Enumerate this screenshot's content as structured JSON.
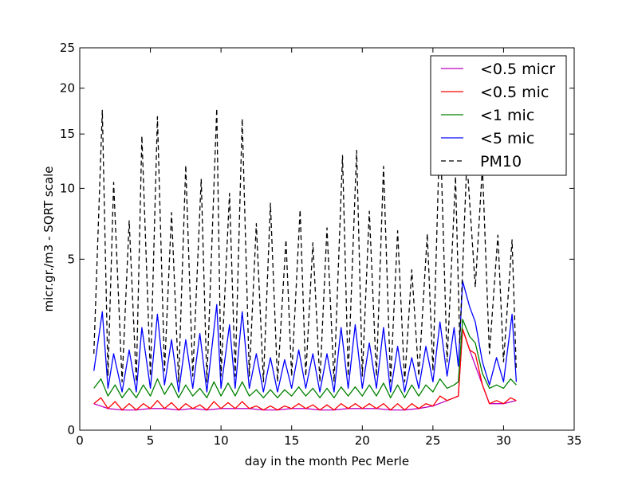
{
  "chart_data": {
    "type": "line",
    "title": "",
    "xlabel": "day in the month Pec Merle",
    "ylabel": "micr.gr./m3 - SQRT scale",
    "y_scale": "sqrt",
    "xlim": [
      0,
      35
    ],
    "ylim": [
      0,
      25
    ],
    "x_ticks": [
      0,
      5,
      10,
      15,
      20,
      25,
      30,
      35
    ],
    "y_ticks": [
      0,
      5,
      10,
      15,
      20,
      25
    ],
    "grid": false,
    "legend_position": "top-right",
    "series": [
      {
        "name": "<0.5 micr",
        "color": "#bf00bf",
        "style": "solid",
        "points": [
          [
            1,
            0.12
          ],
          [
            2,
            0.08
          ],
          [
            3,
            0.07
          ],
          [
            4,
            0.07
          ],
          [
            5,
            0.08
          ],
          [
            6,
            0.08
          ],
          [
            7,
            0.07
          ],
          [
            8,
            0.08
          ],
          [
            9,
            0.07
          ],
          [
            10,
            0.08
          ],
          [
            11,
            0.08
          ],
          [
            12,
            0.08
          ],
          [
            13,
            0.07
          ],
          [
            14,
            0.07
          ],
          [
            15,
            0.08
          ],
          [
            16,
            0.08
          ],
          [
            17,
            0.07
          ],
          [
            18,
            0.07
          ],
          [
            19,
            0.08
          ],
          [
            20,
            0.08
          ],
          [
            21,
            0.08
          ],
          [
            22,
            0.07
          ],
          [
            23,
            0.07
          ],
          [
            24,
            0.08
          ],
          [
            25,
            0.1
          ],
          [
            26,
            0.15
          ],
          [
            26.8,
            0.2
          ],
          [
            27.1,
            1.75
          ],
          [
            27.6,
            1.1
          ],
          [
            28.5,
            0.35
          ],
          [
            29,
            0.12
          ],
          [
            30,
            0.12
          ],
          [
            30.9,
            0.15
          ]
        ]
      },
      {
        "name": "<0.5 mic",
        "color": "#ff0000",
        "style": "solid",
        "points": [
          [
            1,
            0.12
          ],
          [
            1.5,
            0.18
          ],
          [
            2,
            0.08
          ],
          [
            2.5,
            0.14
          ],
          [
            3,
            0.07
          ],
          [
            3.5,
            0.12
          ],
          [
            4,
            0.07
          ],
          [
            4.5,
            0.12
          ],
          [
            5,
            0.08
          ],
          [
            5.5,
            0.15
          ],
          [
            6,
            0.08
          ],
          [
            6.5,
            0.13
          ],
          [
            7,
            0.07
          ],
          [
            7.5,
            0.12
          ],
          [
            8,
            0.08
          ],
          [
            8.5,
            0.11
          ],
          [
            9,
            0.07
          ],
          [
            9.5,
            0.14
          ],
          [
            10,
            0.08
          ],
          [
            10.5,
            0.13
          ],
          [
            11,
            0.08
          ],
          [
            11.5,
            0.14
          ],
          [
            12,
            0.08
          ],
          [
            12.5,
            0.1
          ],
          [
            13,
            0.07
          ],
          [
            13.5,
            0.1
          ],
          [
            14,
            0.07
          ],
          [
            14.5,
            0.1
          ],
          [
            15,
            0.08
          ],
          [
            15.5,
            0.12
          ],
          [
            16,
            0.08
          ],
          [
            16.5,
            0.11
          ],
          [
            17,
            0.07
          ],
          [
            17.5,
            0.11
          ],
          [
            18,
            0.07
          ],
          [
            18.5,
            0.12
          ],
          [
            19,
            0.08
          ],
          [
            19.5,
            0.12
          ],
          [
            20,
            0.08
          ],
          [
            20.5,
            0.12
          ],
          [
            21,
            0.08
          ],
          [
            21.5,
            0.12
          ],
          [
            22,
            0.07
          ],
          [
            22.5,
            0.12
          ],
          [
            23,
            0.07
          ],
          [
            23.5,
            0.12
          ],
          [
            24,
            0.08
          ],
          [
            24.5,
            0.12
          ],
          [
            25,
            0.1
          ],
          [
            25.5,
            0.2
          ],
          [
            26,
            0.15
          ],
          [
            26.5,
            0.18
          ],
          [
            26.8,
            0.2
          ],
          [
            27.1,
            1.75
          ],
          [
            27.6,
            1.1
          ],
          [
            28,
            1.0
          ],
          [
            28.5,
            0.35
          ],
          [
            29,
            0.12
          ],
          [
            29.5,
            0.15
          ],
          [
            30,
            0.12
          ],
          [
            30.5,
            0.18
          ],
          [
            30.9,
            0.15
          ]
        ]
      },
      {
        "name": "<1 mic",
        "color": "#008000",
        "style": "solid",
        "points": [
          [
            1,
            0.3
          ],
          [
            1.5,
            0.45
          ],
          [
            2,
            0.2
          ],
          [
            2.5,
            0.35
          ],
          [
            3,
            0.18
          ],
          [
            3.5,
            0.3
          ],
          [
            4,
            0.18
          ],
          [
            4.5,
            0.35
          ],
          [
            5,
            0.2
          ],
          [
            5.5,
            0.45
          ],
          [
            6,
            0.22
          ],
          [
            6.5,
            0.38
          ],
          [
            7,
            0.18
          ],
          [
            7.5,
            0.35
          ],
          [
            8,
            0.2
          ],
          [
            8.5,
            0.3
          ],
          [
            9,
            0.18
          ],
          [
            9.5,
            0.4
          ],
          [
            10,
            0.2
          ],
          [
            10.5,
            0.38
          ],
          [
            11,
            0.2
          ],
          [
            11.5,
            0.4
          ],
          [
            12,
            0.2
          ],
          [
            12.5,
            0.28
          ],
          [
            13,
            0.18
          ],
          [
            13.5,
            0.28
          ],
          [
            14,
            0.18
          ],
          [
            14.5,
            0.28
          ],
          [
            15,
            0.2
          ],
          [
            15.5,
            0.32
          ],
          [
            16,
            0.2
          ],
          [
            16.5,
            0.3
          ],
          [
            17,
            0.18
          ],
          [
            17.5,
            0.3
          ],
          [
            18,
            0.18
          ],
          [
            18.5,
            0.32
          ],
          [
            19,
            0.2
          ],
          [
            19.5,
            0.32
          ],
          [
            20,
            0.2
          ],
          [
            20.5,
            0.35
          ],
          [
            21,
            0.2
          ],
          [
            21.5,
            0.38
          ],
          [
            22,
            0.18
          ],
          [
            22.5,
            0.35
          ],
          [
            23,
            0.18
          ],
          [
            23.5,
            0.35
          ],
          [
            24,
            0.2
          ],
          [
            24.5,
            0.35
          ],
          [
            25,
            0.25
          ],
          [
            25.5,
            0.45
          ],
          [
            26,
            0.3
          ],
          [
            26.5,
            0.35
          ],
          [
            26.8,
            0.4
          ],
          [
            27.1,
            2.1
          ],
          [
            27.6,
            1.5
          ],
          [
            28,
            1.3
          ],
          [
            28.5,
            0.55
          ],
          [
            29,
            0.3
          ],
          [
            29.5,
            0.35
          ],
          [
            30,
            0.3
          ],
          [
            30.5,
            0.45
          ],
          [
            30.9,
            0.35
          ]
        ]
      },
      {
        "name": "<5 mic",
        "color": "#0000ff",
        "style": "solid",
        "points": [
          [
            1,
            0.6
          ],
          [
            1.6,
            2.4
          ],
          [
            2,
            0.3
          ],
          [
            2.4,
            1.0
          ],
          [
            3,
            0.25
          ],
          [
            3.5,
            1.1
          ],
          [
            4,
            0.25
          ],
          [
            4.4,
            1.8
          ],
          [
            5,
            0.3
          ],
          [
            5.5,
            2.3
          ],
          [
            6,
            0.35
          ],
          [
            6.5,
            1.4
          ],
          [
            7,
            0.25
          ],
          [
            7.5,
            1.4
          ],
          [
            8,
            0.3
          ],
          [
            8.5,
            1.6
          ],
          [
            9,
            0.25
          ],
          [
            9.7,
            2.7
          ],
          [
            10,
            0.3
          ],
          [
            10.6,
            1.9
          ],
          [
            11,
            0.3
          ],
          [
            11.5,
            2.4
          ],
          [
            12,
            0.3
          ],
          [
            12.5,
            1.0
          ],
          [
            13,
            0.25
          ],
          [
            13.5,
            0.9
          ],
          [
            14,
            0.25
          ],
          [
            14.5,
            0.85
          ],
          [
            15,
            0.3
          ],
          [
            15.5,
            1.1
          ],
          [
            16,
            0.3
          ],
          [
            16.5,
            1.0
          ],
          [
            17,
            0.25
          ],
          [
            17.5,
            1.0
          ],
          [
            18,
            0.25
          ],
          [
            18.5,
            1.8
          ],
          [
            19,
            0.3
          ],
          [
            19.5,
            1.9
          ],
          [
            20,
            0.3
          ],
          [
            20.5,
            1.3
          ],
          [
            21,
            0.3
          ],
          [
            21.5,
            1.8
          ],
          [
            22,
            0.25
          ],
          [
            22.5,
            1.2
          ],
          [
            23,
            0.25
          ],
          [
            23.5,
            0.9
          ],
          [
            24,
            0.3
          ],
          [
            24.5,
            1.2
          ],
          [
            25,
            0.4
          ],
          [
            25.5,
            2.0
          ],
          [
            26,
            0.5
          ],
          [
            26.5,
            1.8
          ],
          [
            26.8,
            0.7
          ],
          [
            27.1,
            3.8
          ],
          [
            27.6,
            2.6
          ],
          [
            28,
            2.0
          ],
          [
            28.5,
            0.8
          ],
          [
            29,
            0.35
          ],
          [
            29.5,
            0.9
          ],
          [
            30,
            0.4
          ],
          [
            30.6,
            2.3
          ],
          [
            30.9,
            0.4
          ]
        ]
      },
      {
        "name": "PM10",
        "color": "#000000",
        "style": "dashed",
        "points": [
          [
            1,
            1.0
          ],
          [
            1.6,
            17.5
          ],
          [
            2,
            0.5
          ],
          [
            2.4,
            10.5
          ],
          [
            3,
            0.4
          ],
          [
            3.5,
            7.5
          ],
          [
            4,
            0.4
          ],
          [
            4.4,
            14.8
          ],
          [
            5,
            0.5
          ],
          [
            5.5,
            16.8
          ],
          [
            6,
            0.6
          ],
          [
            6.5,
            8.1
          ],
          [
            7,
            0.4
          ],
          [
            7.5,
            12.0
          ],
          [
            8,
            0.5
          ],
          [
            8.6,
            10.8
          ],
          [
            9,
            0.4
          ],
          [
            9.7,
            17.7
          ],
          [
            10,
            0.5
          ],
          [
            10.6,
            9.6
          ],
          [
            11,
            0.5
          ],
          [
            11.5,
            16.6
          ],
          [
            12,
            0.5
          ],
          [
            12.5,
            7.3
          ],
          [
            13,
            0.4
          ],
          [
            13.5,
            8.8
          ],
          [
            14,
            0.4
          ],
          [
            14.6,
            6.2
          ],
          [
            15,
            0.5
          ],
          [
            15.6,
            8.3
          ],
          [
            16,
            0.5
          ],
          [
            16.5,
            6.0
          ],
          [
            17,
            0.4
          ],
          [
            17.5,
            7.0
          ],
          [
            18,
            0.4
          ],
          [
            18.6,
            12.9
          ],
          [
            19,
            0.5
          ],
          [
            19.6,
            13.4
          ],
          [
            20,
            0.5
          ],
          [
            20.5,
            8.2
          ],
          [
            21,
            0.5
          ],
          [
            21.5,
            11.9
          ],
          [
            22,
            0.4
          ],
          [
            22.5,
            6.8
          ],
          [
            23,
            0.4
          ],
          [
            23.5,
            4.4
          ],
          [
            24,
            0.5
          ],
          [
            24.6,
            6.6
          ],
          [
            25,
            0.6
          ],
          [
            25.5,
            16.3
          ],
          [
            26,
            0.8
          ],
          [
            26.6,
            11.0
          ],
          [
            26.9,
            1.3
          ],
          [
            27.4,
            12.5
          ],
          [
            28,
            3.5
          ],
          [
            28.5,
            11.9
          ],
          [
            29,
            1.0
          ],
          [
            29.6,
            6.5
          ],
          [
            30,
            0.8
          ],
          [
            30.6,
            6.2
          ],
          [
            30.9,
            0.6
          ]
        ]
      }
    ]
  }
}
